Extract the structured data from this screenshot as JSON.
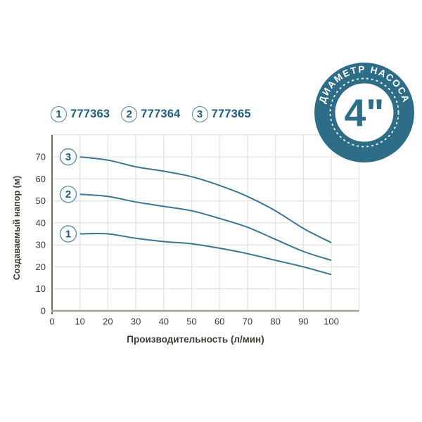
{
  "colors": {
    "curve": "#3a7694",
    "grid": "#e4e4e2",
    "axis_y": "#72705f",
    "axis_x": "#a5a195",
    "text": "#3e3b33",
    "legend_text": "#1d5d80",
    "marker_ring": "#5e93ab",
    "badge_teal": "#2d6d87",
    "badge_text": "#ffffff"
  },
  "legend": {
    "items": [
      {
        "num": "1",
        "label": "777363"
      },
      {
        "num": "2",
        "label": "777364"
      },
      {
        "num": "3",
        "label": "777365"
      }
    ]
  },
  "badge": {
    "arc_text": "ДИАМЕТР НАСОСА",
    "center_text": "4\""
  },
  "chart_data": {
    "type": "line",
    "title": "",
    "xlabel": "Производительность (л/мин)",
    "ylabel": "Создаваемый напор (м)",
    "xlim": [
      0,
      110
    ],
    "ylim": [
      0,
      80
    ],
    "grid": true,
    "xticks": [
      0,
      10,
      20,
      30,
      40,
      50,
      60,
      70,
      80,
      90,
      100
    ],
    "yticks": [
      0,
      10,
      20,
      30,
      40,
      50,
      60,
      70
    ],
    "x": [
      10,
      20,
      30,
      40,
      50,
      60,
      70,
      80,
      90,
      100
    ],
    "series": [
      {
        "name": "777363",
        "marker": "1",
        "values": [
          35,
          35,
          33,
          31.5,
          30.5,
          28.5,
          26,
          23,
          20,
          16.5
        ]
      },
      {
        "name": "777364",
        "marker": "2",
        "values": [
          53,
          52,
          49.5,
          47.5,
          45.5,
          42,
          38,
          32.5,
          27,
          23
        ]
      },
      {
        "name": "777365",
        "marker": "3",
        "values": [
          70,
          68.5,
          65.5,
          63.5,
          61,
          57,
          52,
          45.5,
          37.5,
          31
        ]
      }
    ]
  }
}
